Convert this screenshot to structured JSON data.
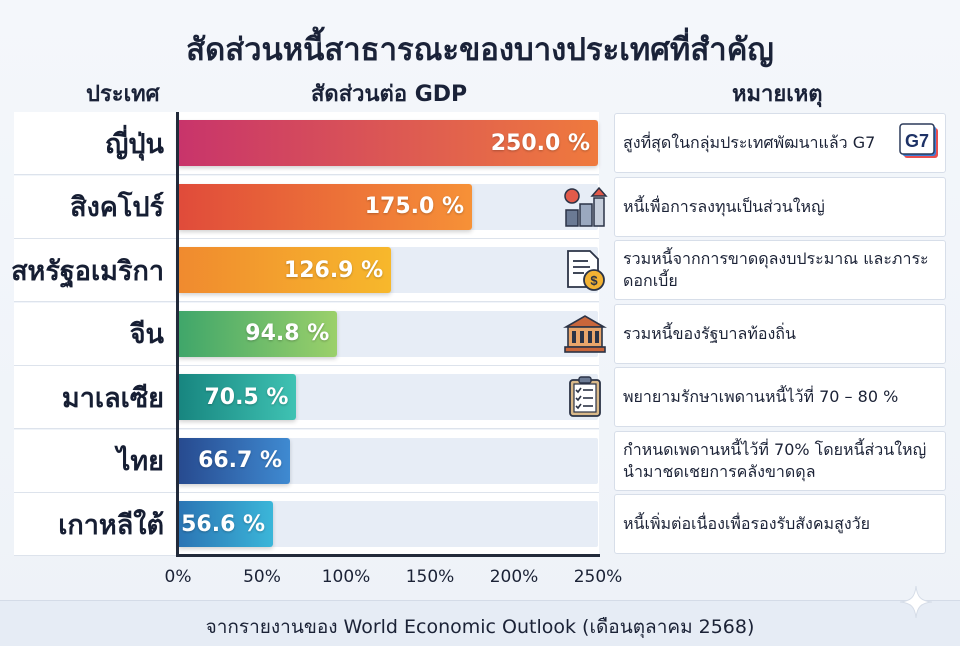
{
  "title": "สัดส่วนหนี้สาธารณะของบางประเทศที่สำคัญ",
  "headers": {
    "country": "ประเทศ",
    "ratio": "สัดส่วนต่อ GDP",
    "note": "หมายเหตุ"
  },
  "chart_data": {
    "type": "bar",
    "orientation": "horizontal",
    "title": "สัดส่วนหนี้สาธารณะของบางประเทศที่สำคัญ",
    "categories": [
      "ญี่ปุ่น",
      "สิงคโปร์",
      "สหรัฐอเมริกา",
      "จีน",
      "มาเลเซีย",
      "ไทย",
      "เกาหลีใต้"
    ],
    "values": [
      250.0,
      175.0,
      126.9,
      94.8,
      70.5,
      66.7,
      56.6
    ],
    "value_labels": [
      "250.0 %",
      "175.0 %",
      "126.9 %",
      "94.8 %",
      "70.5 %",
      "66.7 %",
      "56.6 %"
    ],
    "xlim": [
      0,
      250
    ],
    "x_ticks": [
      "0%",
      "50%",
      "100%",
      "150%",
      "200%",
      "250%"
    ],
    "x_tick_values": [
      0,
      50,
      100,
      150,
      200,
      250
    ],
    "ylabel": "ประเทศ",
    "xlabel": "สัดส่วนต่อ GDP",
    "bar_colors": [
      [
        "#c8346b",
        "#ef7a3d"
      ],
      [
        "#e04b3a",
        "#f69137"
      ],
      [
        "#f08a2f",
        "#f7b82c"
      ],
      [
        "#3fa66a",
        "#9bd06a"
      ],
      [
        "#17857f",
        "#3fc2b3"
      ],
      [
        "#274a8f",
        "#3f8ad1"
      ],
      [
        "#2b74b4",
        "#3bb6d9"
      ]
    ]
  },
  "notes": [
    {
      "text": "สูงที่สุดในกลุ่มประเทศพัฒนาแล้ว G7",
      "icon": "g7-icon",
      "icon_text": "G7"
    },
    {
      "text": "หนี้เพื่อการลงทุนเป็นส่วนใหญ่",
      "icon": "investment-icon"
    },
    {
      "text": "รวมหนี้จากการขาดดุลงบประมาณ และภาระดอกเบี้ย",
      "icon": "document-coin-icon"
    },
    {
      "text": "รวมหนี้ของรัฐบาลท้องถิ่น",
      "icon": "government-building-icon"
    },
    {
      "text": "พยายามรักษาเพดานหนี้ไว้ที่ 70 – 80 %",
      "icon": "clipboard-checklist-icon"
    },
    {
      "text": "กำหนดเพดานหนี้ไว้ที่ 70% โดยหนี้ส่วนใหญ่ นำมาชดเชยการคลังขาดดุล",
      "icon": null
    },
    {
      "text": "หนี้เพิ่มต่อเนื่องเพื่อรองรับสังคมสูงวัย",
      "icon": null
    }
  ],
  "source": "จากรายงานของ World Economic Outlook (เดือนตุลาคม 2568)"
}
